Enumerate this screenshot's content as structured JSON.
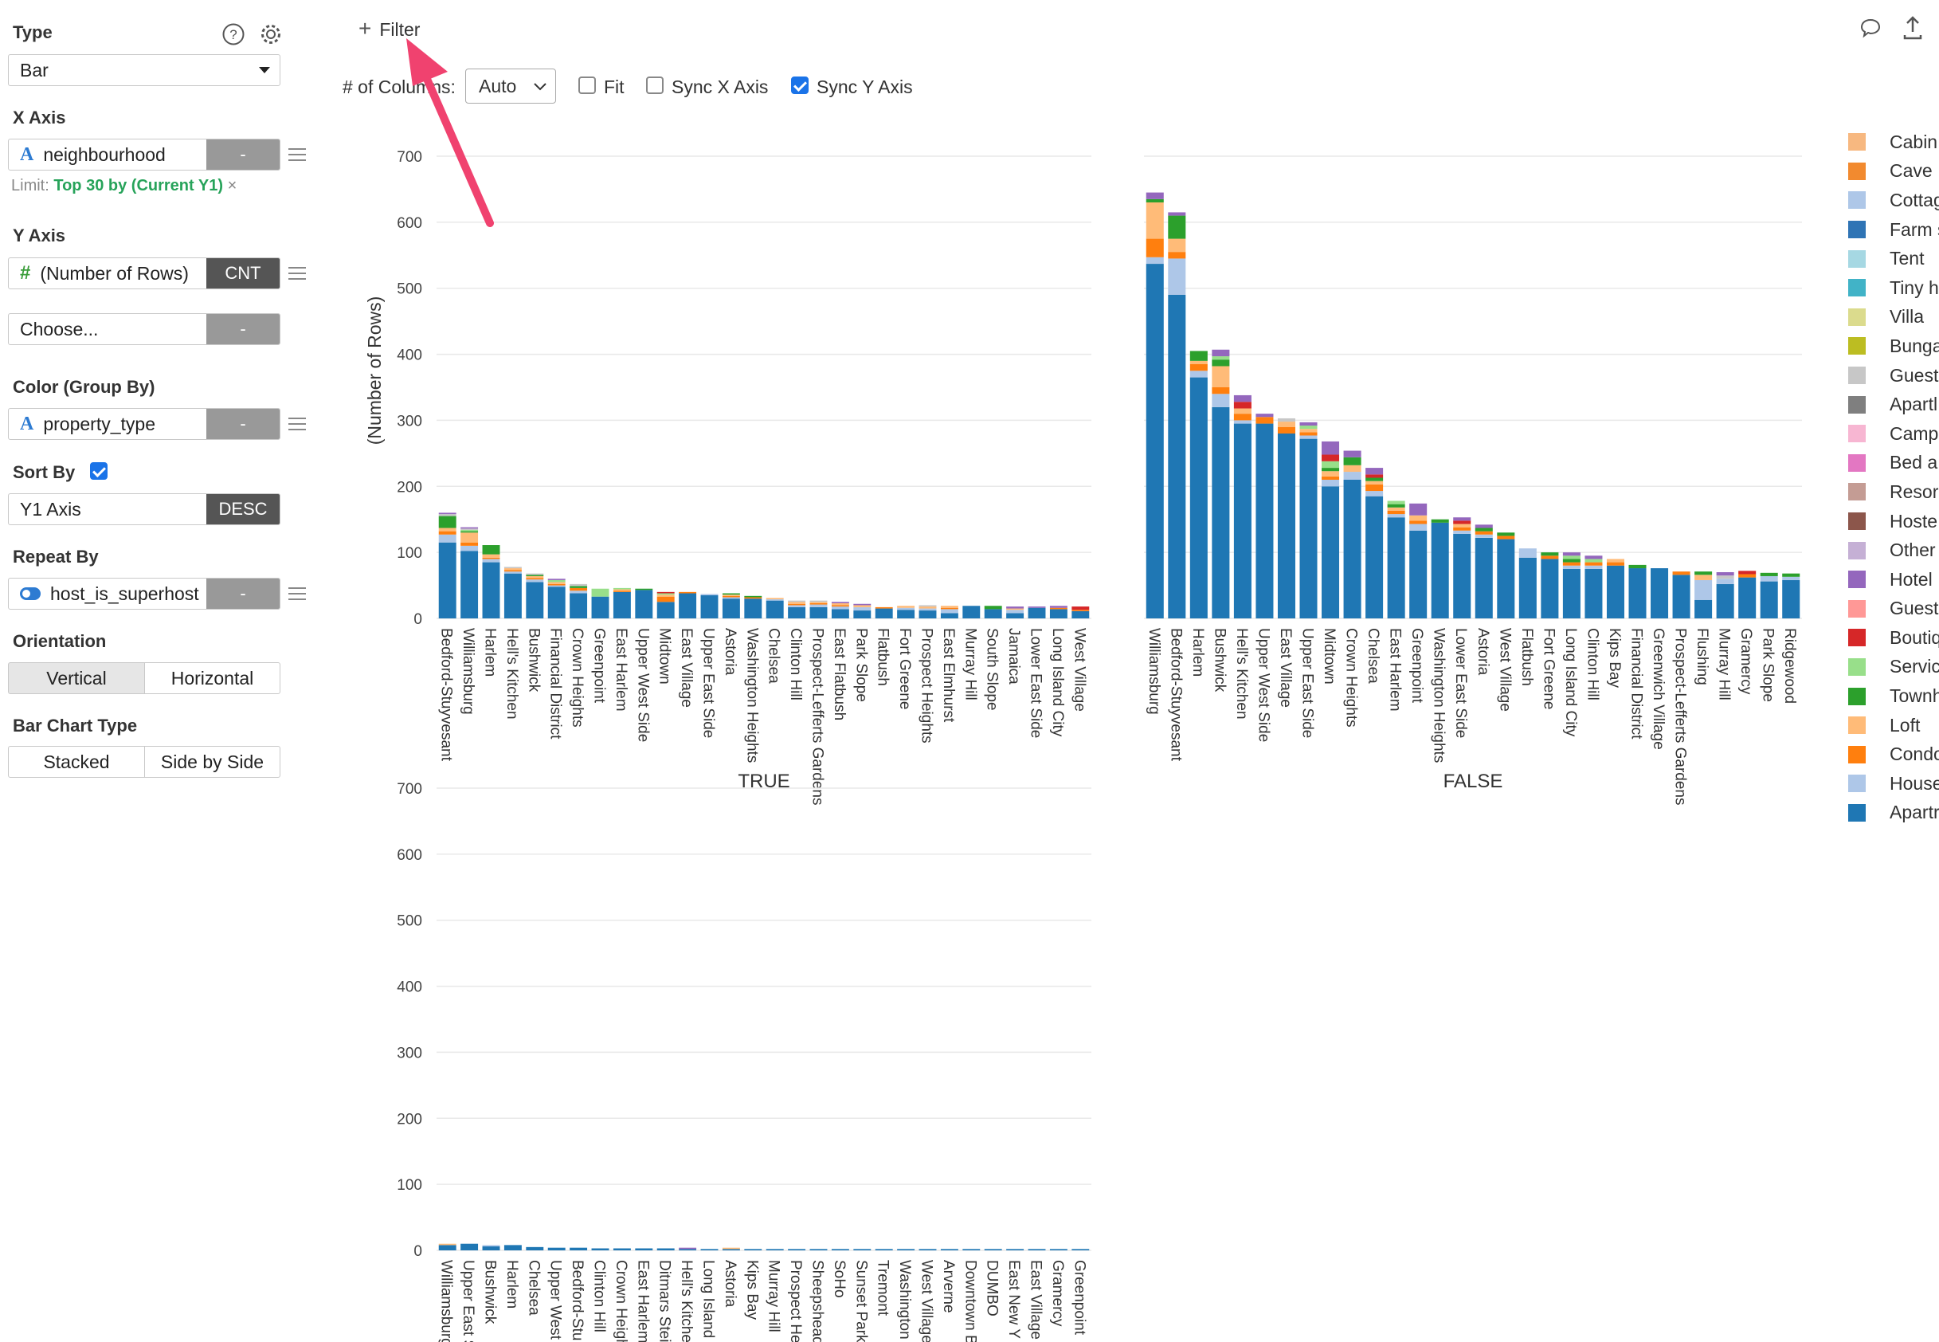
{
  "panel": {
    "type_label": "Type",
    "type_value": "Bar",
    "x_axis_label": "X Axis",
    "x_field": "neighbourhood",
    "x_agg": "-",
    "limit_prefix": "Limit:",
    "limit_value": "Top 30 by (Current Y1)",
    "limit_remove": "×",
    "y_axis_label": "Y Axis",
    "y_field": "(Number of Rows)",
    "y_agg": "CNT",
    "y2_placeholder": "Choose...",
    "y2_agg": "-",
    "color_label": "Color (Group By)",
    "color_field": "property_type",
    "color_agg": "-",
    "sort_label": "Sort By",
    "sort_checked": true,
    "sort_field": "Y1 Axis",
    "sort_dir": "DESC",
    "repeat_label": "Repeat By",
    "repeat_field": "host_is_superhost",
    "repeat_agg": "-",
    "orientation_label": "Orientation",
    "orientation_options": [
      "Vertical",
      "Horizontal"
    ],
    "orientation_selected": "Vertical",
    "bar_type_label": "Bar Chart Type",
    "bar_type_options": [
      "Stacked",
      "Side by Side"
    ],
    "bar_type_selected": "Stacked",
    "help_icon": "question-circle-icon",
    "settings_icon": "gear-icon"
  },
  "toolbar": {
    "filter_label": "Filter",
    "columns_label": "# of Columns:",
    "columns_value": "Auto",
    "fit_label": "Fit",
    "fit_checked": false,
    "sync_x_label": "Sync X Axis",
    "sync_x_checked": false,
    "sync_y_label": "Sync Y Axis",
    "sync_y_checked": true,
    "comment_icon": "comment-icon",
    "export_icon": "export-icon"
  },
  "chart_data": {
    "type": "bar",
    "stacked": true,
    "ylabel": "(Number of Rows)",
    "ylim": [
      0,
      700
    ],
    "yticks": [
      0,
      100,
      200,
      300,
      400,
      500,
      600,
      700
    ],
    "legend_position": "right",
    "property_types": [
      {
        "name": "Cabin",
        "color": "#f7b880"
      },
      {
        "name": "Cave",
        "color": "#f28a2f"
      },
      {
        "name": "Cottag",
        "color": "#aec7e8"
      },
      {
        "name": "Farm s",
        "color": "#2f74b5"
      },
      {
        "name": "Tent",
        "color": "#a6d8e3"
      },
      {
        "name": "Tiny h",
        "color": "#41b3c7"
      },
      {
        "name": "Villa",
        "color": "#dbdb8d"
      },
      {
        "name": "Bunga",
        "color": "#bcbd22"
      },
      {
        "name": "Guest",
        "color": "#c7c7c7"
      },
      {
        "name": "Apartl",
        "color": "#7f7f7f"
      },
      {
        "name": "Camp",
        "color": "#f7b6d2"
      },
      {
        "name": "Bed a",
        "color": "#e377c2"
      },
      {
        "name": "Resor",
        "color": "#c49c94"
      },
      {
        "name": "Hoste",
        "color": "#8c564b"
      },
      {
        "name": "Other",
        "color": "#c5b0d5"
      },
      {
        "name": "Hotel",
        "color": "#9467bd"
      },
      {
        "name": "Guest",
        "color": "#ff9896"
      },
      {
        "name": "Boutiq",
        "color": "#d62728"
      },
      {
        "name": "Servic",
        "color": "#98df8a"
      },
      {
        "name": "Townh",
        "color": "#2ca02c"
      },
      {
        "name": "Loft",
        "color": "#ffbb78"
      },
      {
        "name": "Condo",
        "color": "#ff7f0e"
      },
      {
        "name": "House",
        "color": "#aec7e8"
      },
      {
        "name": "Apartr",
        "color": "#1f77b4"
      }
    ],
    "panels": [
      {
        "title": "TRUE",
        "categories": [
          "Bedford-Stuyvesant",
          "Williamsburg",
          "Harlem",
          "Hell's Kitchen",
          "Bushwick",
          "Financial District",
          "Crown Heights",
          "Greenpoint",
          "East Harlem",
          "Upper West Side",
          "Midtown",
          "East Village",
          "Upper East Side",
          "Astoria",
          "Washington Heights",
          "Chelsea",
          "Clinton Hill",
          "Prospect-Lefferts Gardens",
          "East Flatbush",
          "Park Slope",
          "Flatbush",
          "Fort Greene",
          "Prospect Heights",
          "East Elmhurst",
          "Murray Hill",
          "South Slope",
          "Jamaica",
          "Lower East Side",
          "Long Island City",
          "West Village"
        ],
        "apartment": [
          115,
          102,
          85,
          68,
          55,
          48,
          38,
          33,
          40,
          43,
          25,
          38,
          35,
          30,
          30,
          27,
          17,
          17,
          14,
          12,
          15,
          13,
          12,
          8,
          19,
          14,
          8,
          16,
          14,
          11
        ],
        "house": [
          12,
          8,
          5,
          3,
          4,
          2,
          4,
          0,
          0,
          0,
          0,
          0,
          2,
          2,
          0,
          2,
          3,
          4,
          4,
          5,
          0,
          3,
          3,
          6,
          0,
          0,
          5,
          0,
          0,
          0
        ],
        "condo": [
          5,
          5,
          2,
          2,
          2,
          2,
          4,
          0,
          2,
          0,
          8,
          2,
          0,
          2,
          2,
          0,
          2,
          2,
          2,
          0,
          2,
          0,
          0,
          2,
          0,
          0,
          0,
          0,
          2,
          2
        ],
        "loft": [
          5,
          15,
          5,
          3,
          3,
          3,
          0,
          0,
          2,
          0,
          3,
          0,
          0,
          2,
          0,
          2,
          3,
          2,
          3,
          3,
          0,
          3,
          3,
          3,
          0,
          0,
          2,
          0,
          0,
          0
        ],
        "townhouse": [
          18,
          2,
          14,
          0,
          2,
          0,
          3,
          0,
          0,
          2,
          0,
          0,
          0,
          2,
          2,
          0,
          0,
          0,
          0,
          0,
          0,
          0,
          0,
          0,
          0,
          5,
          0,
          0,
          0,
          0
        ],
        "serviced": [
          0,
          2,
          0,
          0,
          0,
          3,
          0,
          12,
          2,
          0,
          2,
          0,
          0,
          0,
          0,
          0,
          0,
          0,
          0,
          0,
          0,
          0,
          0,
          0,
          0,
          0,
          0,
          0,
          0,
          0
        ],
        "boutique": [
          0,
          0,
          0,
          0,
          0,
          0,
          0,
          0,
          0,
          0,
          2,
          0,
          0,
          0,
          0,
          0,
          0,
          0,
          0,
          0,
          0,
          0,
          0,
          0,
          0,
          0,
          0,
          0,
          0,
          5
        ],
        "guesthouse": [
          3,
          2,
          0,
          2,
          2,
          0,
          3,
          0,
          0,
          0,
          0,
          0,
          0,
          0,
          0,
          0,
          2,
          2,
          0,
          0,
          0,
          0,
          2,
          0,
          0,
          0,
          0,
          0,
          0,
          0
        ],
        "other": [
          2,
          2,
          0,
          0,
          0,
          2,
          0,
          0,
          0,
          0,
          0,
          0,
          0,
          0,
          0,
          0,
          0,
          0,
          2,
          2,
          0,
          0,
          0,
          0,
          0,
          0,
          3,
          2,
          3,
          0
        ]
      },
      {
        "title": "FALSE",
        "categories": [
          "Williamsburg",
          "Bedford-Stuyvesant",
          "Harlem",
          "Bushwick",
          "Hell's Kitchen",
          "Upper West Side",
          "East Village",
          "Upper East Side",
          "Midtown",
          "Crown Heights",
          "Chelsea",
          "East Harlem",
          "Greenpoint",
          "Washington Heights",
          "Lower East Side",
          "Astoria",
          "West Village",
          "Flatbush",
          "Fort Greene",
          "Long Island City",
          "Clinton Hill",
          "Kips Bay",
          "Financial District",
          "Greenwich Village",
          "Prospect-Lefferts Gardens",
          "Flushing",
          "Murray Hill",
          "Gramercy",
          "Park Slope",
          "Ridgewood"
        ],
        "apartment": [
          537,
          490,
          365,
          320,
          295,
          295,
          280,
          272,
          200,
          210,
          185,
          153,
          133,
          145,
          128,
          122,
          120,
          92,
          90,
          75,
          75,
          80,
          76,
          76,
          66,
          28,
          52,
          62,
          56,
          58
        ],
        "house": [
          10,
          55,
          10,
          20,
          5,
          0,
          0,
          5,
          10,
          12,
          8,
          5,
          10,
          0,
          5,
          5,
          0,
          14,
          0,
          5,
          5,
          0,
          0,
          0,
          0,
          30,
          8,
          0,
          8,
          5
        ],
        "condo": [
          28,
          10,
          10,
          10,
          10,
          10,
          10,
          5,
          5,
          0,
          10,
          5,
          5,
          0,
          5,
          5,
          5,
          0,
          5,
          5,
          5,
          5,
          0,
          0,
          5,
          0,
          0,
          5,
          0,
          0
        ],
        "loft": [
          55,
          20,
          5,
          32,
          8,
          0,
          8,
          5,
          8,
          10,
          5,
          5,
          8,
          0,
          5,
          0,
          0,
          0,
          0,
          0,
          0,
          5,
          0,
          0,
          0,
          8,
          0,
          0,
          0,
          0
        ],
        "townhouse": [
          5,
          35,
          15,
          10,
          0,
          0,
          0,
          0,
          5,
          12,
          5,
          5,
          0,
          5,
          0,
          5,
          5,
          0,
          5,
          5,
          0,
          0,
          5,
          0,
          0,
          5,
          0,
          0,
          5,
          5
        ],
        "serviced": [
          0,
          0,
          0,
          5,
          0,
          0,
          0,
          5,
          10,
          0,
          0,
          5,
          0,
          0,
          0,
          0,
          0,
          0,
          0,
          5,
          5,
          0,
          0,
          0,
          0,
          0,
          0,
          0,
          0,
          0
        ],
        "boutique": [
          0,
          0,
          0,
          0,
          10,
          0,
          0,
          0,
          10,
          0,
          5,
          0,
          0,
          0,
          5,
          0,
          0,
          0,
          0,
          0,
          0,
          0,
          0,
          0,
          0,
          0,
          0,
          5,
          0,
          0
        ],
        "guesthouse": [
          0,
          0,
          0,
          0,
          0,
          0,
          5,
          0,
          0,
          0,
          0,
          0,
          0,
          0,
          0,
          0,
          0,
          0,
          0,
          0,
          0,
          0,
          0,
          0,
          0,
          0,
          5,
          0,
          0,
          0
        ],
        "other": [
          10,
          5,
          0,
          10,
          10,
          5,
          0,
          5,
          20,
          10,
          10,
          0,
          18,
          0,
          5,
          5,
          0,
          0,
          0,
          5,
          5,
          0,
          0,
          0,
          0,
          0,
          5,
          0,
          0,
          0
        ]
      },
      {
        "title": "",
        "categories": [
          "Williamsburg",
          "Upper East Side",
          "Bushwick",
          "Harlem",
          "Chelsea",
          "Upper West Side",
          "Bedford-Stuyvesant",
          "Clinton Hill",
          "Crown Heights",
          "East Harlem",
          "Ditmars Steinway",
          "Hell's Kitchen",
          "Long Island City",
          "Astoria",
          "Kips Bay",
          "Murray Hill",
          "Prospect Heights",
          "Sheepshead Bay",
          "SoHo",
          "Sunset Park",
          "Tremont",
          "Washington Heights",
          "West Village",
          "Arverne",
          "Downtown Brooklyn",
          "DUMBO",
          "East New York",
          "East Village",
          "Gramercy",
          "Greenpoint"
        ],
        "category_labels": [
          "Williamsburg",
          "Upper East S",
          "Bushwick",
          "Harlem",
          "Chelsea",
          "Upper West",
          "Bedford-Stu",
          "Clinton Hill",
          "Crown Heigh",
          "East Harlem",
          "Ditmars Stei",
          "Hell's Kitche",
          "Long Island",
          "Astoria",
          "Kips Bay",
          "Murray Hill",
          "Prospect He",
          "Sheepshead",
          "SoHo",
          "Sunset Park",
          "Tremont",
          "Washington",
          "West Village",
          "Arverne",
          "Downtown B",
          "DUMBO",
          "East New Y",
          "East Village",
          "Gramercy",
          "Greenpoint"
        ],
        "apartment": [
          8,
          10,
          6,
          8,
          5,
          4,
          4,
          3,
          3,
          3,
          3,
          2,
          2,
          2,
          2,
          2,
          2,
          2,
          2,
          2,
          2,
          2,
          2,
          2,
          2,
          2,
          2,
          2,
          2,
          2
        ],
        "house": [
          0,
          0,
          2,
          0,
          0,
          0,
          0,
          0,
          0,
          0,
          0,
          0,
          0,
          0,
          0,
          0,
          0,
          0,
          0,
          0,
          0,
          0,
          0,
          0,
          0,
          0,
          0,
          0,
          0,
          0
        ],
        "condo": [
          0,
          0,
          0,
          0,
          0,
          0,
          0,
          0,
          0,
          0,
          0,
          0,
          0,
          0,
          0,
          0,
          0,
          0,
          0,
          0,
          0,
          0,
          0,
          0,
          0,
          0,
          0,
          0,
          0,
          0
        ],
        "loft": [
          2,
          0,
          0,
          0,
          0,
          0,
          0,
          0,
          0,
          0,
          0,
          0,
          0,
          2,
          0,
          0,
          0,
          0,
          0,
          0,
          0,
          0,
          0,
          0,
          0,
          0,
          0,
          0,
          0,
          0
        ],
        "townhouse": [
          0,
          0,
          0,
          0,
          0,
          0,
          0,
          0,
          0,
          0,
          0,
          0,
          0,
          0,
          0,
          0,
          0,
          0,
          0,
          0,
          0,
          0,
          0,
          0,
          0,
          0,
          0,
          0,
          0,
          0
        ],
        "serviced": [
          0,
          0,
          0,
          0,
          0,
          0,
          0,
          0,
          0,
          0,
          0,
          0,
          0,
          0,
          0,
          0,
          0,
          0,
          0,
          0,
          0,
          0,
          0,
          0,
          0,
          0,
          0,
          0,
          0,
          0
        ],
        "boutique": [
          0,
          0,
          0,
          0,
          0,
          0,
          0,
          0,
          0,
          0,
          0,
          0,
          0,
          0,
          0,
          0,
          0,
          0,
          0,
          0,
          0,
          0,
          0,
          0,
          0,
          0,
          0,
          0,
          0,
          0
        ],
        "guesthouse": [
          0,
          0,
          0,
          0,
          0,
          0,
          0,
          0,
          0,
          0,
          0,
          0,
          0,
          0,
          0,
          0,
          0,
          0,
          0,
          0,
          0,
          0,
          0,
          0,
          0,
          0,
          0,
          0,
          0,
          0
        ],
        "other": [
          0,
          0,
          0,
          0,
          0,
          0,
          0,
          0,
          0,
          0,
          0,
          2,
          0,
          0,
          0,
          0,
          0,
          0,
          0,
          0,
          0,
          0,
          0,
          0,
          0,
          0,
          0,
          0,
          0,
          0
        ]
      }
    ]
  }
}
